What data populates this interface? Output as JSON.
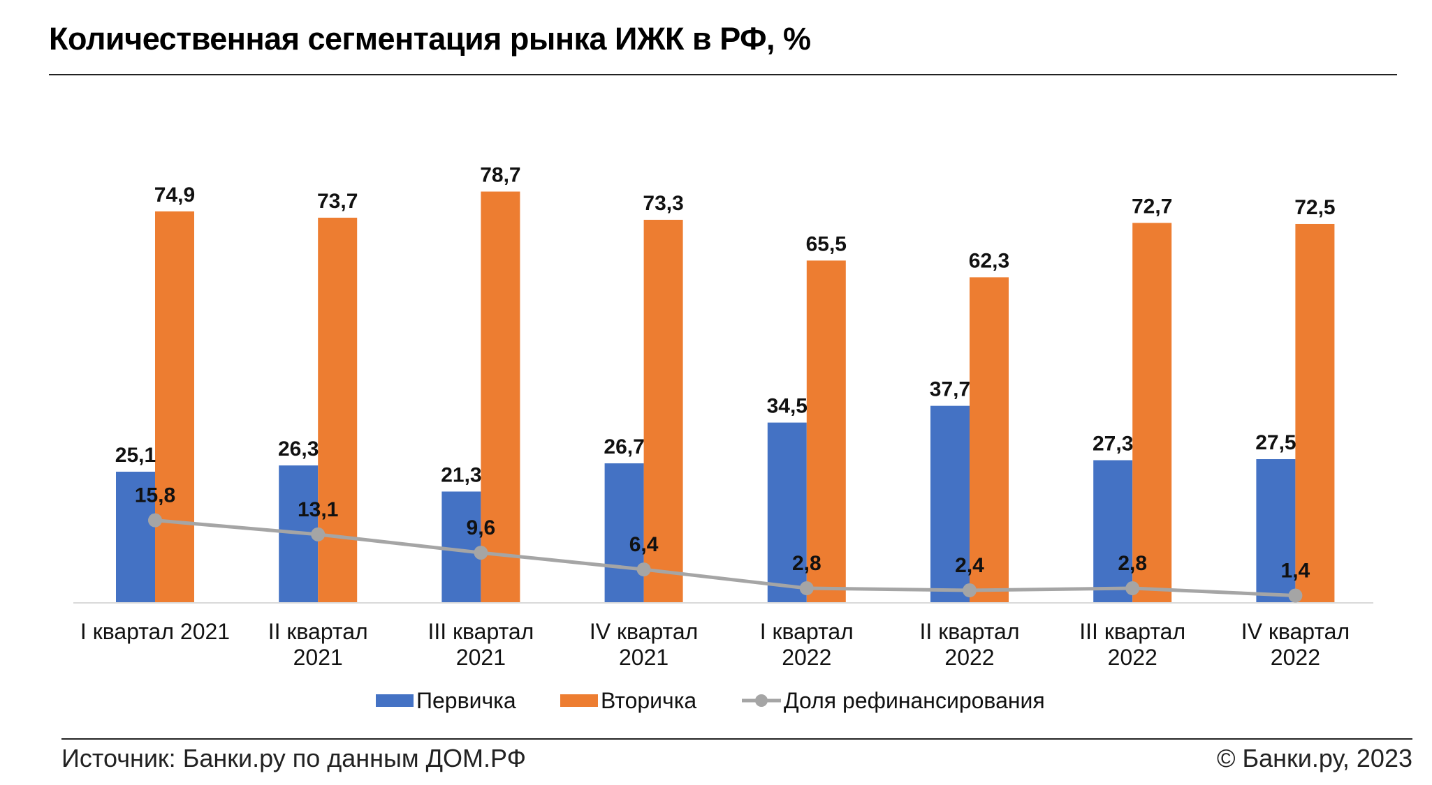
{
  "title": "Количественная сегментация рынка ИЖК в РФ, %",
  "footer": {
    "source": "Источник: Банки.ру по данным ДОМ.РФ",
    "copyright": "© Банки.ру, 2023"
  },
  "colors": {
    "primary": "#4472C4",
    "secondary": "#ED7D31",
    "refinancing": "#A5A5A5"
  },
  "chart_data": {
    "type": "bar",
    "categories": [
      [
        "I квартал 2021"
      ],
      [
        "II квартал",
        "2021"
      ],
      [
        "III квартал",
        "2021"
      ],
      [
        "IV квартал",
        "2021"
      ],
      [
        "I квартал",
        "2022"
      ],
      [
        "II квартал",
        "2022"
      ],
      [
        "III квартал",
        "2022"
      ],
      [
        "IV квартал",
        "2022"
      ]
    ],
    "series": [
      {
        "name": "Первичка",
        "type": "bar",
        "color": "#4472C4",
        "values": [
          25.1,
          26.3,
          21.3,
          26.7,
          34.5,
          37.7,
          27.3,
          27.5
        ],
        "labels": [
          "25,1",
          "26,3",
          "21,3",
          "26,7",
          "34,5",
          "37,7",
          "27,3",
          "27,5"
        ]
      },
      {
        "name": "Вторичка",
        "type": "bar",
        "color": "#ED7D31",
        "values": [
          74.9,
          73.7,
          78.7,
          73.3,
          65.5,
          62.3,
          72.7,
          72.5
        ],
        "labels": [
          "74,9",
          "73,7",
          "78,7",
          "73,3",
          "65,5",
          "62,3",
          "72,7",
          "72,5"
        ]
      },
      {
        "name": "Доля рефинансирования",
        "type": "line",
        "color": "#A5A5A5",
        "values": [
          15.8,
          13.1,
          9.6,
          6.4,
          2.8,
          2.4,
          2.8,
          1.4
        ],
        "labels": [
          "15,8",
          "13,1",
          "9,6",
          "6,4",
          "2,8",
          "2,4",
          "2,8",
          "1,4"
        ]
      }
    ],
    "ylim": [
      0,
      80
    ],
    "grid": false,
    "legend": "bottom",
    "xlabel": "",
    "ylabel": ""
  }
}
